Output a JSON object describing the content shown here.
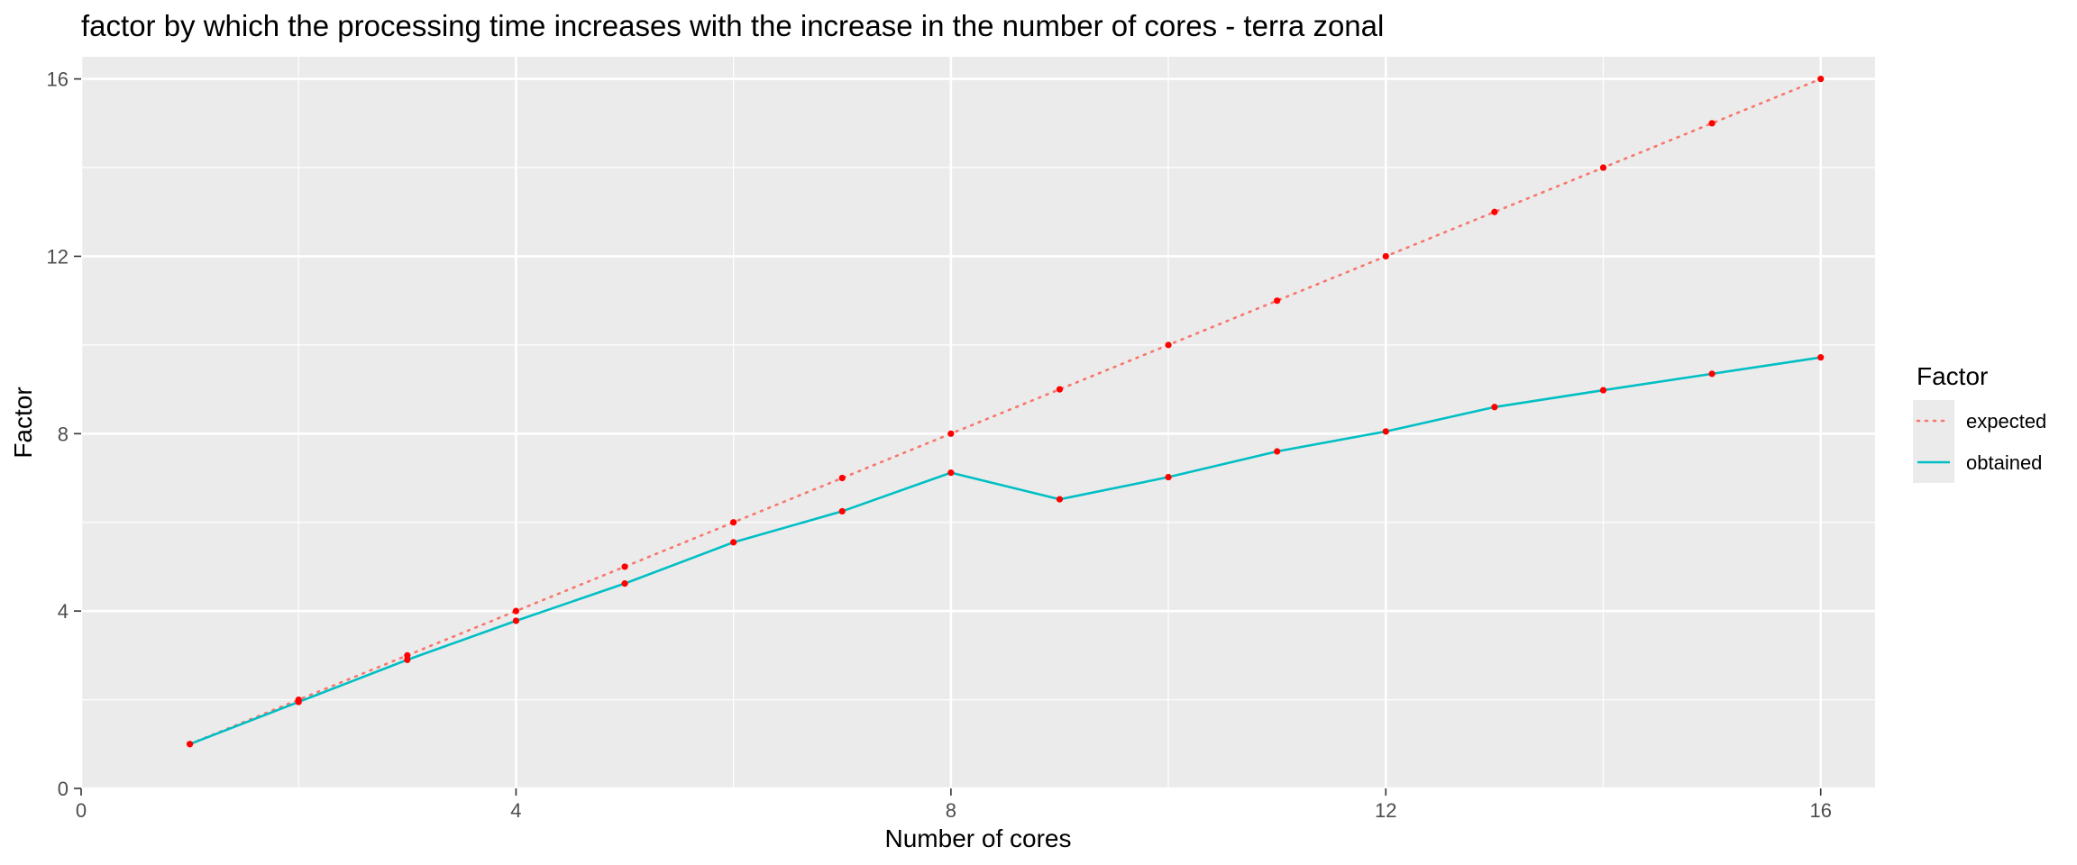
{
  "chart_data": {
    "type": "line",
    "title": "factor by which the processing time increases with the increase in the number of cores - terra zonal",
    "xlabel": "Number of cores",
    "ylabel": "Factor",
    "xlim": [
      0,
      16.5
    ],
    "ylim": [
      0,
      16.5
    ],
    "x_ticks": [
      0,
      4,
      8,
      12,
      16
    ],
    "y_ticks": [
      0,
      4,
      8,
      12,
      16
    ],
    "x_tick_labels": [
      "0",
      "4",
      "8",
      "12",
      "16"
    ],
    "y_tick_labels": [
      "0",
      "4",
      "8",
      "12",
      "16"
    ],
    "grid": true,
    "legend": {
      "title": "Factor",
      "position": "right"
    },
    "x": [
      1,
      2,
      3,
      4,
      5,
      6,
      7,
      8,
      9,
      10,
      11,
      12,
      13,
      14,
      15,
      16
    ],
    "series": [
      {
        "name": "expected",
        "line_style": "dotted",
        "color": "#f8766d",
        "values": [
          1,
          2,
          3,
          4,
          5,
          6,
          7,
          8,
          9,
          10,
          11,
          12,
          13,
          14,
          15,
          16
        ]
      },
      {
        "name": "obtained",
        "line_style": "solid",
        "color": "#00bfc4",
        "values": [
          1,
          1.95,
          2.9,
          3.78,
          4.62,
          5.55,
          6.25,
          7.12,
          6.52,
          7.02,
          7.6,
          8.05,
          8.6,
          8.98,
          9.35,
          9.72
        ]
      }
    ],
    "point_color": "#ff0000",
    "panel_color": "#ebebeb",
    "grid_color": "#ffffff"
  }
}
